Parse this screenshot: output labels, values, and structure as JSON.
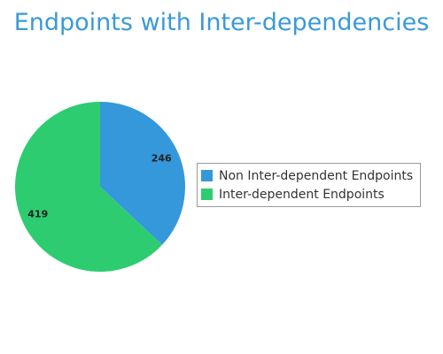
{
  "chart_data": {
    "type": "pie",
    "title": "Endpoints with Inter-dependencies",
    "categories": [
      "Non Inter-dependent Endpoints",
      "Inter-dependent Endpoints"
    ],
    "values": [
      246,
      419
    ],
    "colors": [
      "#3498db",
      "#2ecc71"
    ],
    "data_labels": [
      "246",
      "419"
    ],
    "legend_position": "right"
  }
}
